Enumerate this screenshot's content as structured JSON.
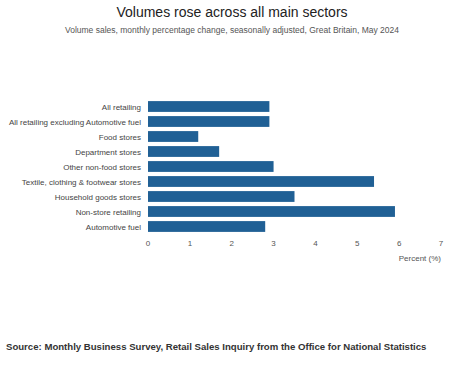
{
  "chart_data": {
    "type": "bar",
    "title": "Volumes rose across all main sectors",
    "subtitle": "Volume sales, monthly percentage change, seasonally adjusted, Great Britain, May 2024",
    "categories": [
      "All retailing",
      "All retailing excluding Automotive fuel",
      "Food stores",
      "Department stores",
      "Other non-food stores",
      "Textile, clothing & footwear stores",
      "Household goods stores",
      "Non-store retailing",
      "Automotive fuel"
    ],
    "values": [
      2.9,
      2.9,
      1.2,
      1.7,
      3.0,
      5.4,
      3.5,
      5.9,
      2.8
    ],
    "color": "#206095",
    "orientation": "horizontal",
    "xlim": [
      0,
      7
    ],
    "xticks": [
      0,
      1,
      2,
      3,
      4,
      5,
      6,
      7
    ],
    "xlabel": "Percent (%)",
    "grid": false,
    "source": "Source: Monthly Business Survey, Retail Sales Inquiry from the Office for National Statistics"
  }
}
